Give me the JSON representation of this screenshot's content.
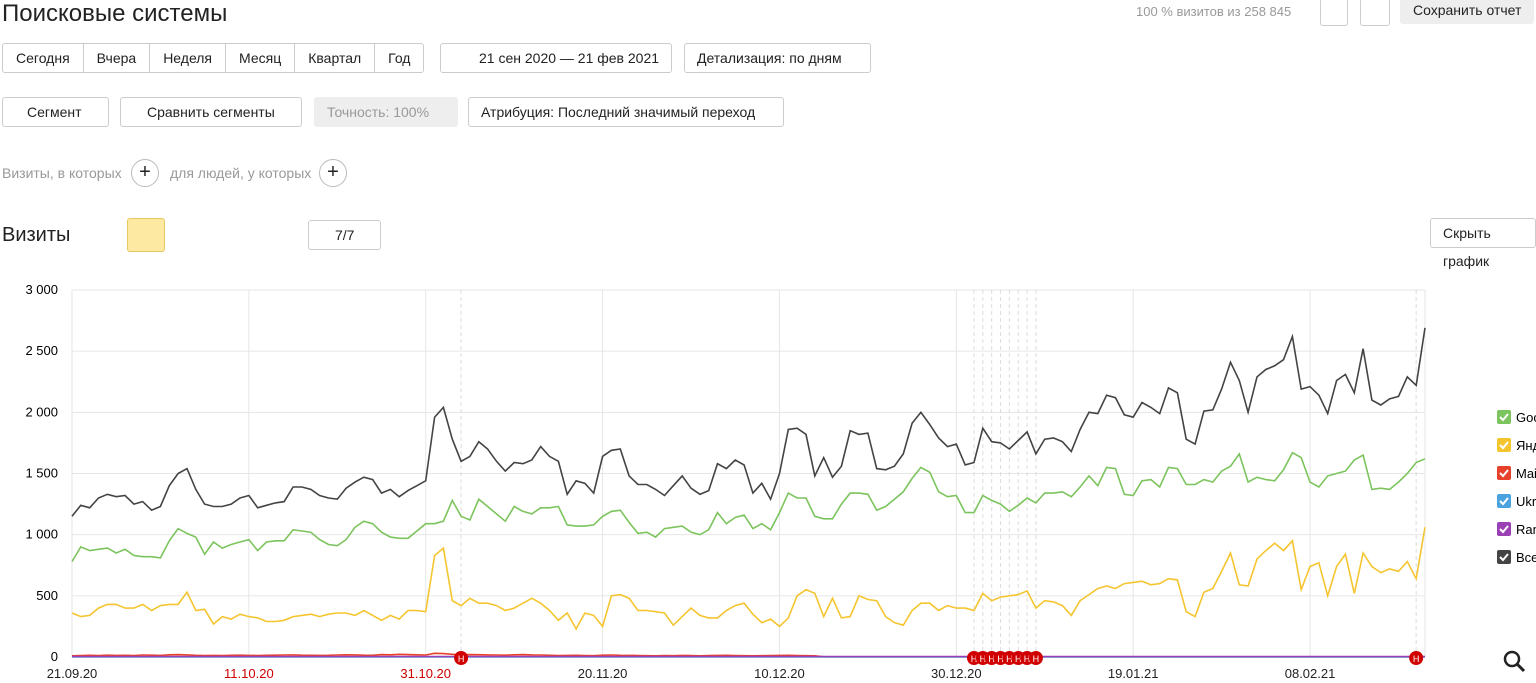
{
  "header": {
    "title": "Поисковые системы",
    "visits_note": "100 % визитов из 258 845",
    "save": "Сохранить отчет"
  },
  "periods": [
    "Сегодня",
    "Вчера",
    "Неделя",
    "Месяц",
    "Квартал",
    "Год"
  ],
  "date_range": "21 сен 2020 — 21 фев 2021",
  "detail": "Детализация: по дням",
  "segment": "Сегмент",
  "compare": "Сравнить сегменты",
  "accuracy": "Точность: 100%",
  "attribution": "Атрибуция: Последний значимый переход",
  "filters": [
    "Визиты, в которых",
    "для людей, у которых"
  ],
  "section_title": "Визиты",
  "chart_count": "7/7",
  "hide_chart": "Скрыть график",
  "chart_data": {
    "type": "line",
    "categories": [
      "21.09.20",
      null,
      null,
      null,
      null,
      null,
      null,
      null,
      null,
      null,
      null,
      null,
      null,
      null,
      null,
      null,
      null,
      null,
      null,
      null,
      "11.10.20",
      null,
      null,
      null,
      null,
      null,
      null,
      null,
      null,
      null,
      null,
      null,
      null,
      null,
      null,
      null,
      null,
      null,
      null,
      null,
      "31.10.20",
      null,
      null,
      null,
      null,
      null,
      null,
      null,
      null,
      null,
      null,
      null,
      null,
      null,
      null,
      null,
      null,
      null,
      null,
      null,
      "20.11.20",
      null,
      null,
      null,
      null,
      null,
      null,
      null,
      null,
      null,
      null,
      null,
      null,
      null,
      null,
      null,
      null,
      null,
      null,
      null,
      "10.12.20",
      null,
      null,
      null,
      null,
      null,
      null,
      null,
      null,
      null,
      null,
      null,
      null,
      null,
      null,
      null,
      null,
      null,
      null,
      null,
      "30.12.20",
      null,
      null,
      null,
      null,
      null,
      null,
      null,
      null,
      null,
      null,
      null,
      null,
      null,
      null,
      null,
      null,
      null,
      null,
      null,
      "19.01.21",
      null,
      null,
      null,
      null,
      null,
      null,
      null,
      null,
      null,
      null,
      null,
      null,
      null,
      null,
      null,
      null,
      null,
      null,
      null,
      "08.02.21",
      null,
      null,
      null,
      null,
      null,
      null,
      null,
      null,
      null,
      null,
      null,
      null,
      null
    ],
    "red_label_indices": [
      20,
      40
    ],
    "ylim": [
      0,
      3000
    ],
    "yticks": [
      0,
      500,
      {
        "value": 1000,
        "label": "1 000"
      },
      {
        "value": 1500,
        "label": "1 500"
      },
      {
        "value": 2000,
        "label": "2 000"
      },
      {
        "value": 2500,
        "label": "2 500"
      },
      {
        "value": 3000,
        "label": "3 000"
      }
    ],
    "grid": true,
    "annotations": [
      {
        "index": 44,
        "label": "Н"
      },
      {
        "index": 102,
        "label": "Н"
      },
      {
        "index": 103,
        "label": "Н"
      },
      {
        "index": 104,
        "label": "Н"
      },
      {
        "index": 105,
        "label": "Н"
      },
      {
        "index": 106,
        "label": "Н"
      },
      {
        "index": 107,
        "label": "Н"
      },
      {
        "index": 108,
        "label": "Н"
      },
      {
        "index": 109,
        "label": "Н"
      },
      {
        "index": 152,
        "label": "Н"
      }
    ],
    "series": [
      {
        "name": "Google",
        "color": "#7cc45d",
        "values": [
          780,
          900,
          870,
          880,
          890,
          850,
          880,
          830,
          820,
          820,
          810,
          950,
          1050,
          1010,
          980,
          840,
          940,
          890,
          920,
          940,
          960,
          870,
          940,
          950,
          950,
          1040,
          1030,
          1020,
          960,
          920,
          910,
          960,
          1060,
          1110,
          1090,
          1020,
          980,
          970,
          970,
          1030,
          1090,
          1090,
          1110,
          1280,
          1150,
          1120,
          1290,
          1230,
          1170,
          1110,
          1230,
          1190,
          1170,
          1220,
          1220,
          1230,
          1080,
          1070,
          1070,
          1080,
          1150,
          1190,
          1200,
          1100,
          1010,
          1020,
          980,
          1050,
          1060,
          1070,
          1020,
          1000,
          1040,
          1180,
          1090,
          1140,
          1160,
          1050,
          1090,
          1040,
          1180,
          1340,
          1300,
          1300,
          1150,
          1130,
          1130,
          1250,
          1340,
          1340,
          1330,
          1200,
          1230,
          1290,
          1350,
          1460,
          1550,
          1510,
          1350,
          1310,
          1320,
          1180,
          1180,
          1320,
          1280,
          1250,
          1190,
          1240,
          1300,
          1260,
          1340,
          1340,
          1350,
          1310,
          1390,
          1480,
          1400,
          1550,
          1540,
          1330,
          1320,
          1440,
          1450,
          1390,
          1550,
          1540,
          1410,
          1410,
          1450,
          1430,
          1520,
          1560,
          1660,
          1430,
          1470,
          1450,
          1440,
          1530,
          1670,
          1630,
          1430,
          1390,
          1480,
          1500,
          1520,
          1610,
          1650,
          1370,
          1380,
          1370,
          1430,
          1500,
          1590,
          1620
        ]
      },
      {
        "name": "Яндекс",
        "color": "#f5c530",
        "values": [
          360,
          330,
          340,
          400,
          430,
          430,
          400,
          400,
          430,
          380,
          420,
          430,
          430,
          530,
          380,
          390,
          270,
          330,
          310,
          350,
          330,
          320,
          290,
          290,
          300,
          330,
          340,
          350,
          330,
          350,
          360,
          360,
          340,
          380,
          340,
          300,
          340,
          310,
          380,
          380,
          370,
          830,
          890,
          460,
          420,
          480,
          440,
          440,
          420,
          380,
          400,
          440,
          480,
          440,
          380,
          300,
          360,
          230,
          360,
          340,
          250,
          500,
          510,
          480,
          380,
          380,
          370,
          360,
          260,
          330,
          400,
          340,
          320,
          320,
          380,
          420,
          440,
          350,
          280,
          310,
          250,
          320,
          500,
          550,
          520,
          330,
          480,
          320,
          330,
          500,
          470,
          460,
          330,
          280,
          260,
          380,
          440,
          440,
          380,
          420,
          400,
          400,
          380,
          520,
          460,
          490,
          500,
          510,
          540,
          400,
          460,
          450,
          420,
          340,
          460,
          510,
          560,
          580,
          560,
          600,
          610,
          620,
          590,
          600,
          640,
          630,
          370,
          330,
          530,
          560,
          700,
          850,
          590,
          580,
          800,
          870,
          930,
          870,
          950,
          550,
          740,
          770,
          500,
          740,
          840,
          520,
          850,
          740,
          690,
          720,
          700,
          780,
          640,
          1060
        ]
      },
      {
        "name": "Mail.ru",
        "color": "#e8412b",
        "values": [
          10,
          12,
          14,
          12,
          15,
          13,
          14,
          12,
          16,
          15,
          13,
          18,
          20,
          17,
          14,
          12,
          13,
          12,
          14,
          15,
          13,
          12,
          14,
          15,
          16,
          17,
          15,
          14,
          13,
          14,
          16,
          18,
          17,
          15,
          14,
          20,
          18,
          22,
          20,
          18,
          16,
          30,
          28,
          22,
          18,
          20,
          19,
          17,
          16,
          15,
          18,
          20,
          17,
          16,
          14,
          12,
          13,
          14,
          12,
          11,
          15,
          16,
          14,
          13,
          12,
          11,
          10,
          12,
          11,
          13,
          12,
          10,
          12,
          13,
          14,
          12,
          11,
          10,
          11,
          12,
          13,
          14,
          12,
          11,
          10,
          2,
          2,
          2,
          2,
          2,
          2,
          2,
          2,
          2,
          2,
          2,
          2,
          2,
          2,
          2,
          2,
          2,
          2,
          2,
          2,
          2,
          2,
          2,
          2,
          2,
          2,
          2,
          2,
          2,
          2,
          2,
          2,
          2,
          2,
          2,
          2,
          2,
          2,
          2,
          2,
          2,
          2,
          2,
          2,
          2,
          2,
          2,
          2,
          2,
          2,
          2,
          2,
          2,
          2,
          2,
          2,
          2,
          2,
          2,
          2,
          2,
          2,
          2,
          2,
          2,
          2,
          2,
          2,
          2
        ]
      },
      {
        "name": "Ukr.net",
        "color": "#4aa3df",
        "values": [
          1,
          1,
          1,
          1,
          1,
          1,
          1,
          1,
          1,
          1,
          1,
          1,
          1,
          1,
          1,
          1,
          1,
          1,
          1,
          1,
          1,
          1,
          1,
          1,
          1,
          1,
          1,
          1,
          1,
          1,
          1,
          1,
          1,
          1,
          1,
          1,
          1,
          1,
          1,
          1,
          1,
          1,
          1,
          1,
          1,
          1,
          1,
          1,
          1,
          1,
          1,
          1,
          1,
          1,
          1,
          1,
          1,
          1,
          1,
          1,
          1,
          1,
          1,
          1,
          1,
          1,
          1,
          1,
          1,
          1,
          1,
          1,
          1,
          1,
          1,
          1,
          1,
          1,
          1,
          1,
          1,
          1,
          1,
          1,
          1,
          1,
          1,
          1,
          1,
          1,
          1,
          1,
          1,
          1,
          1,
          1,
          1,
          1,
          1,
          1,
          1,
          1,
          1,
          1,
          1,
          1,
          1,
          1,
          1,
          1,
          1,
          1,
          1,
          1,
          1,
          1,
          1,
          1,
          1,
          1,
          1,
          1,
          1,
          1,
          1,
          1,
          1,
          1,
          1,
          1,
          1,
          1,
          1,
          1,
          1,
          1,
          1,
          1,
          1,
          1,
          1,
          1,
          1,
          1,
          1,
          1,
          1,
          1,
          1,
          1,
          1,
          1,
          1,
          1
        ]
      },
      {
        "name": "Rambler",
        "color": "#9b3fb5",
        "values": [
          4,
          4,
          4,
          4,
          4,
          4,
          4,
          4,
          4,
          4,
          4,
          4,
          4,
          4,
          4,
          4,
          4,
          4,
          4,
          4,
          4,
          4,
          4,
          4,
          4,
          4,
          4,
          4,
          4,
          4,
          4,
          4,
          4,
          4,
          4,
          4,
          4,
          4,
          4,
          4,
          4,
          4,
          4,
          4,
          4,
          4,
          4,
          4,
          4,
          4,
          4,
          4,
          4,
          4,
          4,
          4,
          4,
          4,
          4,
          4,
          4,
          4,
          4,
          4,
          4,
          4,
          4,
          4,
          4,
          4,
          4,
          4,
          4,
          4,
          4,
          4,
          4,
          4,
          4,
          4,
          4,
          4,
          4,
          4,
          4,
          4,
          4,
          4,
          4,
          4,
          4,
          4,
          4,
          4,
          4,
          4,
          4,
          4,
          4,
          4,
          4,
          4,
          4,
          4,
          4,
          4,
          4,
          4,
          4,
          4,
          4,
          4,
          4,
          4,
          4,
          4,
          4,
          4,
          4,
          4,
          4,
          4,
          4,
          4,
          4,
          4,
          4,
          4,
          4,
          4,
          4,
          4,
          4,
          4,
          4,
          4,
          4,
          4,
          4,
          4,
          4,
          4,
          4,
          4,
          4,
          4,
          4,
          4,
          4,
          4,
          4,
          4,
          4,
          4
        ]
      },
      {
        "name": "Всего",
        "color": "#444444",
        "values": [
          1150,
          1240,
          1220,
          1300,
          1330,
          1310,
          1320,
          1250,
          1270,
          1200,
          1230,
          1400,
          1500,
          1540,
          1370,
          1250,
          1230,
          1230,
          1250,
          1300,
          1320,
          1220,
          1240,
          1260,
          1270,
          1390,
          1390,
          1370,
          1320,
          1300,
          1290,
          1380,
          1430,
          1470,
          1450,
          1340,
          1370,
          1310,
          1360,
          1400,
          1440,
          1960,
          2040,
          1780,
          1600,
          1640,
          1760,
          1700,
          1600,
          1520,
          1590,
          1580,
          1610,
          1720,
          1640,
          1600,
          1330,
          1440,
          1420,
          1340,
          1640,
          1690,
          1700,
          1480,
          1410,
          1410,
          1370,
          1320,
          1400,
          1480,
          1380,
          1330,
          1360,
          1580,
          1540,
          1610,
          1570,
          1340,
          1420,
          1290,
          1500,
          1860,
          1870,
          1820,
          1480,
          1630,
          1470,
          1560,
          1850,
          1820,
          1830,
          1540,
          1530,
          1560,
          1660,
          1910,
          2000,
          1900,
          1790,
          1720,
          1740,
          1570,
          1590,
          1870,
          1760,
          1750,
          1700,
          1770,
          1840,
          1660,
          1780,
          1790,
          1760,
          1680,
          1860,
          2000,
          1990,
          2140,
          2120,
          1980,
          1960,
          2080,
          2040,
          1990,
          2200,
          2160,
          1780,
          1740,
          2010,
          2020,
          2190,
          2410,
          2260,
          2000,
          2290,
          2350,
          2380,
          2430,
          2620,
          2190,
          2210,
          2140,
          1990,
          2260,
          2310,
          2160,
          2520,
          2100,
          2060,
          2110,
          2130,
          2290,
          2220,
          2690
        ]
      }
    ]
  }
}
